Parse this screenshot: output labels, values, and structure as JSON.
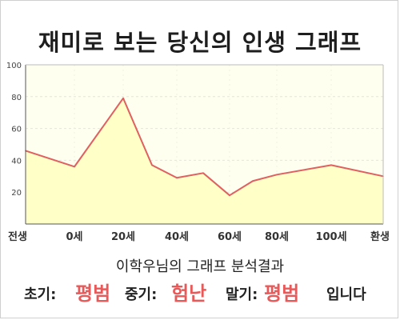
{
  "title": "재미로 보는 당신의 인생 그래프",
  "summary": "이학우님의 그래프 분석결과",
  "verdict": {
    "early_label": "초기:",
    "early_value": "평범",
    "mid_label": "중기:",
    "mid_value": "험난",
    "late_label": "말기:",
    "late_value": "평범",
    "suffix": "입니다"
  },
  "colors": {
    "line": "#e06060",
    "fill": "#ffffc8",
    "plot_bg": "#fffff0",
    "verdict_value": "#e85a5a"
  },
  "chart_data": {
    "type": "area",
    "title": "",
    "xlabel": "",
    "ylabel": "",
    "ylim": [
      0,
      100
    ],
    "yticks": [
      20,
      40,
      60,
      80,
      100
    ],
    "grid": true,
    "x_labels": [
      "전생",
      "0세",
      "20세",
      "40세",
      "60세",
      "80세",
      "100세",
      "환생"
    ],
    "series": [
      {
        "points": [
          {
            "x": "전생",
            "y": 46
          },
          {
            "x": "0세",
            "y": 36
          },
          {
            "x": "20세",
            "y": 79
          },
          {
            "x": "30세",
            "y": 37
          },
          {
            "x": "40세",
            "y": 29
          },
          {
            "x": "50세",
            "y": 32
          },
          {
            "x": "60세",
            "y": 18
          },
          {
            "x": "70세",
            "y": 27
          },
          {
            "x": "80세",
            "y": 31
          },
          {
            "x": "100세",
            "y": 37
          },
          {
            "x": "환생",
            "y": 30
          }
        ]
      }
    ]
  }
}
